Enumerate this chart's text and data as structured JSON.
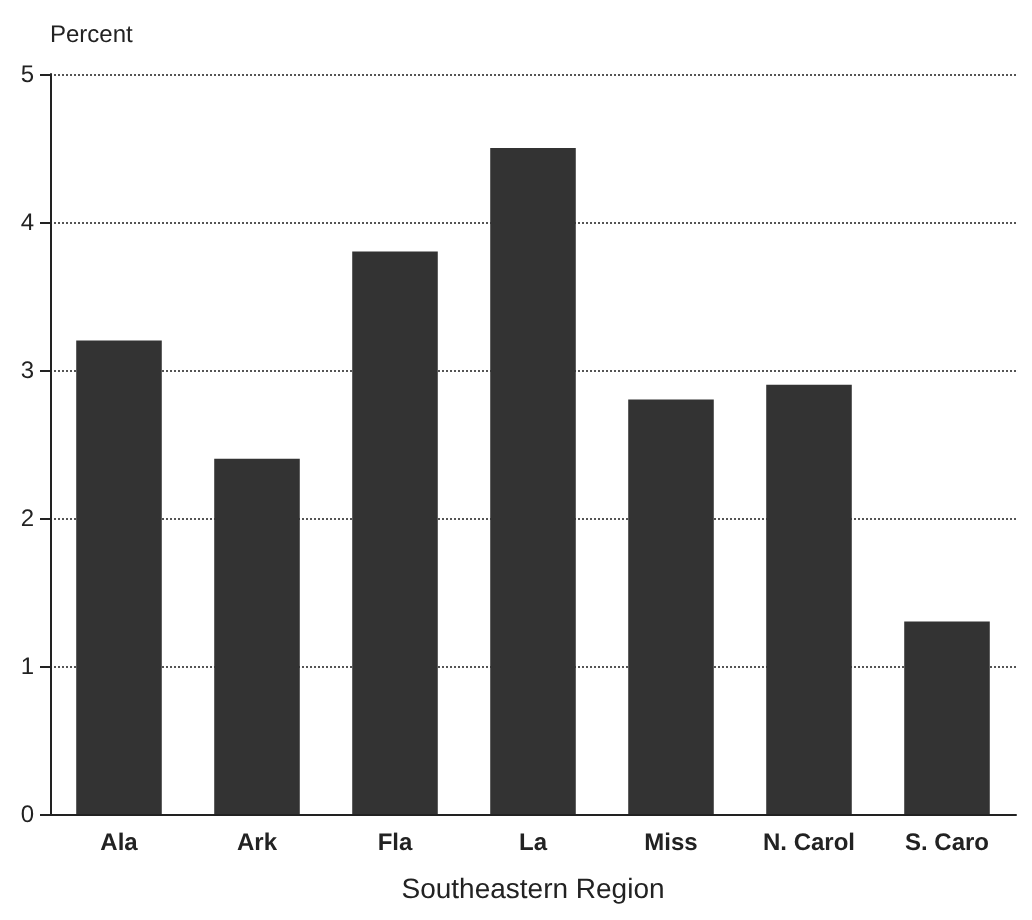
{
  "chart_data": {
    "type": "bar",
    "ylabel": "Percent",
    "xlabel": "Southeastern Region",
    "categories": [
      "Ala",
      "Ark",
      "Fla",
      "La",
      "Miss",
      "N. Carol",
      "S. Caro"
    ],
    "values": [
      3.2,
      2.4,
      3.8,
      4.5,
      2.8,
      2.9,
      1.3
    ],
    "color": "#333333",
    "ylim": [
      0,
      5
    ],
    "yticks": [
      0,
      1,
      2,
      3,
      4,
      5
    ],
    "grid": "y"
  }
}
